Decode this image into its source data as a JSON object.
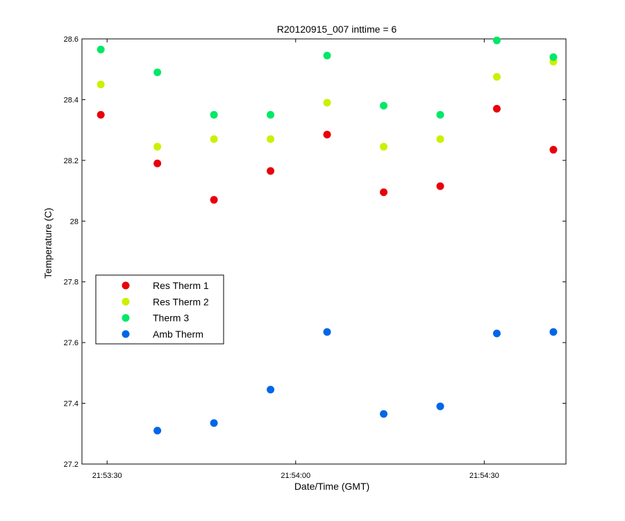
{
  "chart_data": {
    "type": "scatter",
    "title": "R20120915_007 inttime = 6",
    "xlabel": "Date/Time (GMT)",
    "ylabel": "Temperature (C)",
    "x": [
      "21:53:29",
      "21:53:38",
      "21:53:47",
      "21:53:56",
      "21:54:05",
      "21:54:14",
      "21:54:23",
      "21:54:32",
      "21:54:41"
    ],
    "xlim": [
      "21:53:26",
      "21:54:43"
    ],
    "ylim": [
      27.2,
      28.6
    ],
    "x_ticks": [
      "21:53:30",
      "21:54:00",
      "21:54:30"
    ],
    "y_ticks": [
      "27.2",
      "27.4",
      "27.6",
      "27.8",
      "28",
      "28.2",
      "28.4",
      "28.6"
    ],
    "grid": false,
    "legend_position": "middle-left",
    "series": [
      {
        "name": "Res Therm 1",
        "color": "#e8000b",
        "values": [
          28.35,
          28.19,
          28.07,
          28.165,
          28.285,
          28.095,
          28.115,
          28.37,
          28.235
        ]
      },
      {
        "name": "Res Therm 2",
        "color": "#ccf000",
        "values": [
          28.45,
          28.245,
          28.27,
          28.27,
          28.39,
          28.245,
          28.27,
          28.475,
          28.525
        ]
      },
      {
        "name": "Therm 3",
        "color": "#00e868",
        "values": [
          28.565,
          28.49,
          28.35,
          28.35,
          28.545,
          28.38,
          28.35,
          28.595,
          28.54
        ]
      },
      {
        "name": "Amb Therm",
        "color": "#0066e8",
        "values": [
          null,
          27.31,
          27.335,
          27.445,
          27.635,
          27.365,
          27.39,
          27.63,
          27.635
        ]
      }
    ]
  }
}
